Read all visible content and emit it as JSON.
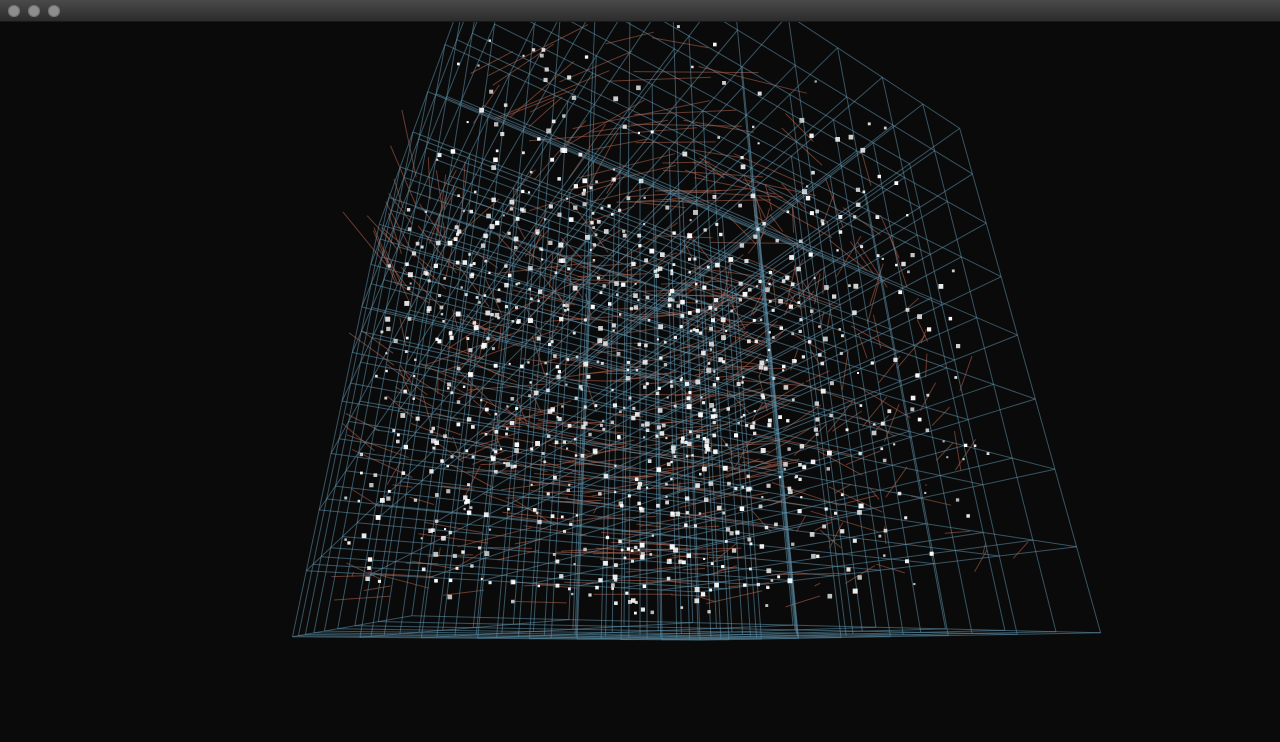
{
  "window": {
    "title": "",
    "buttons": {
      "close_icon": "close-icon",
      "minimize_icon": "minimize-icon",
      "zoom_icon": "zoom-icon"
    }
  },
  "scene": {
    "type": "3d-particle-flow-visualization",
    "colors": {
      "background": "#0a0a0a",
      "grid_lines": "#5f93ad",
      "flow_trails": "#b5644e",
      "particles": "#ffffff"
    }
  }
}
